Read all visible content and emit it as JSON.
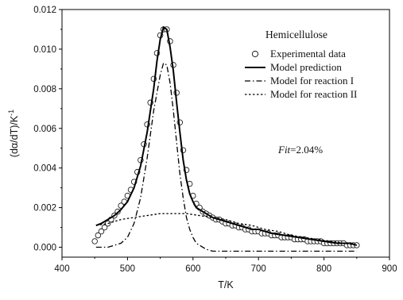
{
  "chart_data": {
    "type": "line",
    "xlabel": "T/K",
    "ylabel": "(dα/dT)/K",
    "ylabel_sup": "-1",
    "xlim": [
      400,
      900
    ],
    "ylim": [
      -0.0005,
      0.012
    ],
    "x_ticks": [
      400,
      500,
      600,
      700,
      800,
      900
    ],
    "y_ticks": [
      0.0,
      0.002,
      0.004,
      0.006,
      0.008,
      0.01,
      0.012
    ],
    "x_tick_labels": [
      "400",
      "500",
      "600",
      "700",
      "800",
      "900"
    ],
    "y_tick_labels": [
      "0.000",
      "0.002",
      "0.004",
      "0.006",
      "0.008",
      "0.010",
      "0.012"
    ],
    "grid": false,
    "legend_position": "top-right",
    "annotations": {
      "sample_label": "Hemicellulose",
      "fit_label": "Fit",
      "fit_value": "=2.04%"
    },
    "series": [
      {
        "name": "Experimental data",
        "style": "open-circle",
        "x": [
          450,
          455,
          460,
          465,
          470,
          475,
          480,
          485,
          490,
          495,
          500,
          505,
          510,
          515,
          520,
          525,
          530,
          535,
          540,
          545,
          550,
          555,
          560,
          565,
          570,
          575,
          580,
          585,
          590,
          595,
          600,
          605,
          610,
          615,
          620,
          625,
          630,
          635,
          640,
          645,
          650,
          655,
          660,
          665,
          670,
          675,
          680,
          685,
          690,
          695,
          700,
          705,
          710,
          715,
          720,
          725,
          730,
          735,
          740,
          745,
          750,
          755,
          760,
          765,
          770,
          775,
          780,
          785,
          790,
          795,
          800,
          805,
          810,
          815,
          820,
          825,
          830,
          835,
          840,
          845,
          850
        ],
        "y": [
          0.0003,
          0.0006,
          0.0008,
          0.001,
          0.0012,
          0.0014,
          0.0016,
          0.0018,
          0.0021,
          0.0023,
          0.0026,
          0.0029,
          0.0033,
          0.0038,
          0.0044,
          0.0052,
          0.0062,
          0.0073,
          0.0085,
          0.0098,
          0.0107,
          0.011,
          0.011,
          0.0104,
          0.0092,
          0.0078,
          0.0063,
          0.0049,
          0.0039,
          0.0032,
          0.0026,
          0.0022,
          0.002,
          0.0018,
          0.0017,
          0.0016,
          0.0015,
          0.0014,
          0.0014,
          0.0013,
          0.0012,
          0.0012,
          0.0011,
          0.0011,
          0.001,
          0.001,
          0.0009,
          0.0009,
          0.0008,
          0.0008,
          0.0008,
          0.0007,
          0.0007,
          0.0007,
          0.0006,
          0.0006,
          0.0006,
          0.0005,
          0.0005,
          0.0005,
          0.0005,
          0.0004,
          0.0004,
          0.0004,
          0.0004,
          0.0003,
          0.0003,
          0.0003,
          0.0003,
          0.0003,
          0.0002,
          0.0002,
          0.0002,
          0.0002,
          0.0002,
          0.0002,
          0.0002,
          0.0001,
          0.0001,
          0.0001,
          0.0001
        ]
      },
      {
        "name": "Model prediction",
        "style": "solid",
        "x": [
          452,
          460,
          470,
          480,
          490,
          500,
          510,
          520,
          530,
          540,
          545,
          550,
          555,
          560,
          565,
          570,
          575,
          580,
          585,
          590,
          595,
          600,
          605,
          610,
          615,
          620,
          625,
          630,
          640,
          650,
          660,
          670,
          680,
          690,
          700,
          720,
          740,
          760,
          780,
          800,
          820,
          840,
          850
        ],
        "y": [
          0.0011,
          0.0012,
          0.0014,
          0.0016,
          0.0019,
          0.0023,
          0.003,
          0.0041,
          0.0058,
          0.008,
          0.0094,
          0.0105,
          0.0111,
          0.011,
          0.0101,
          0.0089,
          0.0073,
          0.0058,
          0.0044,
          0.0034,
          0.0027,
          0.0023,
          0.002,
          0.0019,
          0.0018,
          0.0017,
          0.0016,
          0.0015,
          0.0014,
          0.0013,
          0.0012,
          0.0011,
          0.001,
          0.0009,
          0.0009,
          0.0007,
          0.0006,
          0.0005,
          0.0004,
          0.0003,
          0.0002,
          0.0002,
          0.0001
        ]
      },
      {
        "name": "Model for reaction I",
        "style": "dash-dot",
        "x": [
          452,
          470,
          490,
          500,
          510,
          520,
          530,
          540,
          550,
          555,
          560,
          565,
          570,
          575,
          580,
          585,
          590,
          595,
          600,
          605,
          610,
          615,
          620,
          630,
          650,
          700,
          750,
          800,
          850
        ],
        "y": [
          0.0,
          0.0,
          0.0002,
          0.0005,
          0.0012,
          0.0025,
          0.0045,
          0.0069,
          0.0087,
          0.0093,
          0.0092,
          0.0083,
          0.0069,
          0.0053,
          0.0037,
          0.0025,
          0.0015,
          0.0009,
          0.0005,
          0.0002,
          0.0001,
          0.0,
          -0.0001,
          -0.0002,
          -0.0002,
          -0.0002,
          -0.0002,
          -0.0002,
          -0.0002
        ]
      },
      {
        "name": "Model for reaction II",
        "style": "dotted",
        "x": [
          452,
          470,
          490,
          510,
          530,
          550,
          560,
          570,
          590,
          610,
          630,
          650,
          670,
          690,
          710,
          730,
          750,
          770,
          790,
          810,
          830,
          850
        ],
        "y": [
          0.0011,
          0.0012,
          0.0014,
          0.0015,
          0.0016,
          0.0017,
          0.0017,
          0.0017,
          0.0017,
          0.0016,
          0.0015,
          0.0014,
          0.0012,
          0.0011,
          0.0009,
          0.0008,
          0.0006,
          0.0005,
          0.0004,
          0.0003,
          0.0002,
          0.0001
        ]
      }
    ]
  }
}
